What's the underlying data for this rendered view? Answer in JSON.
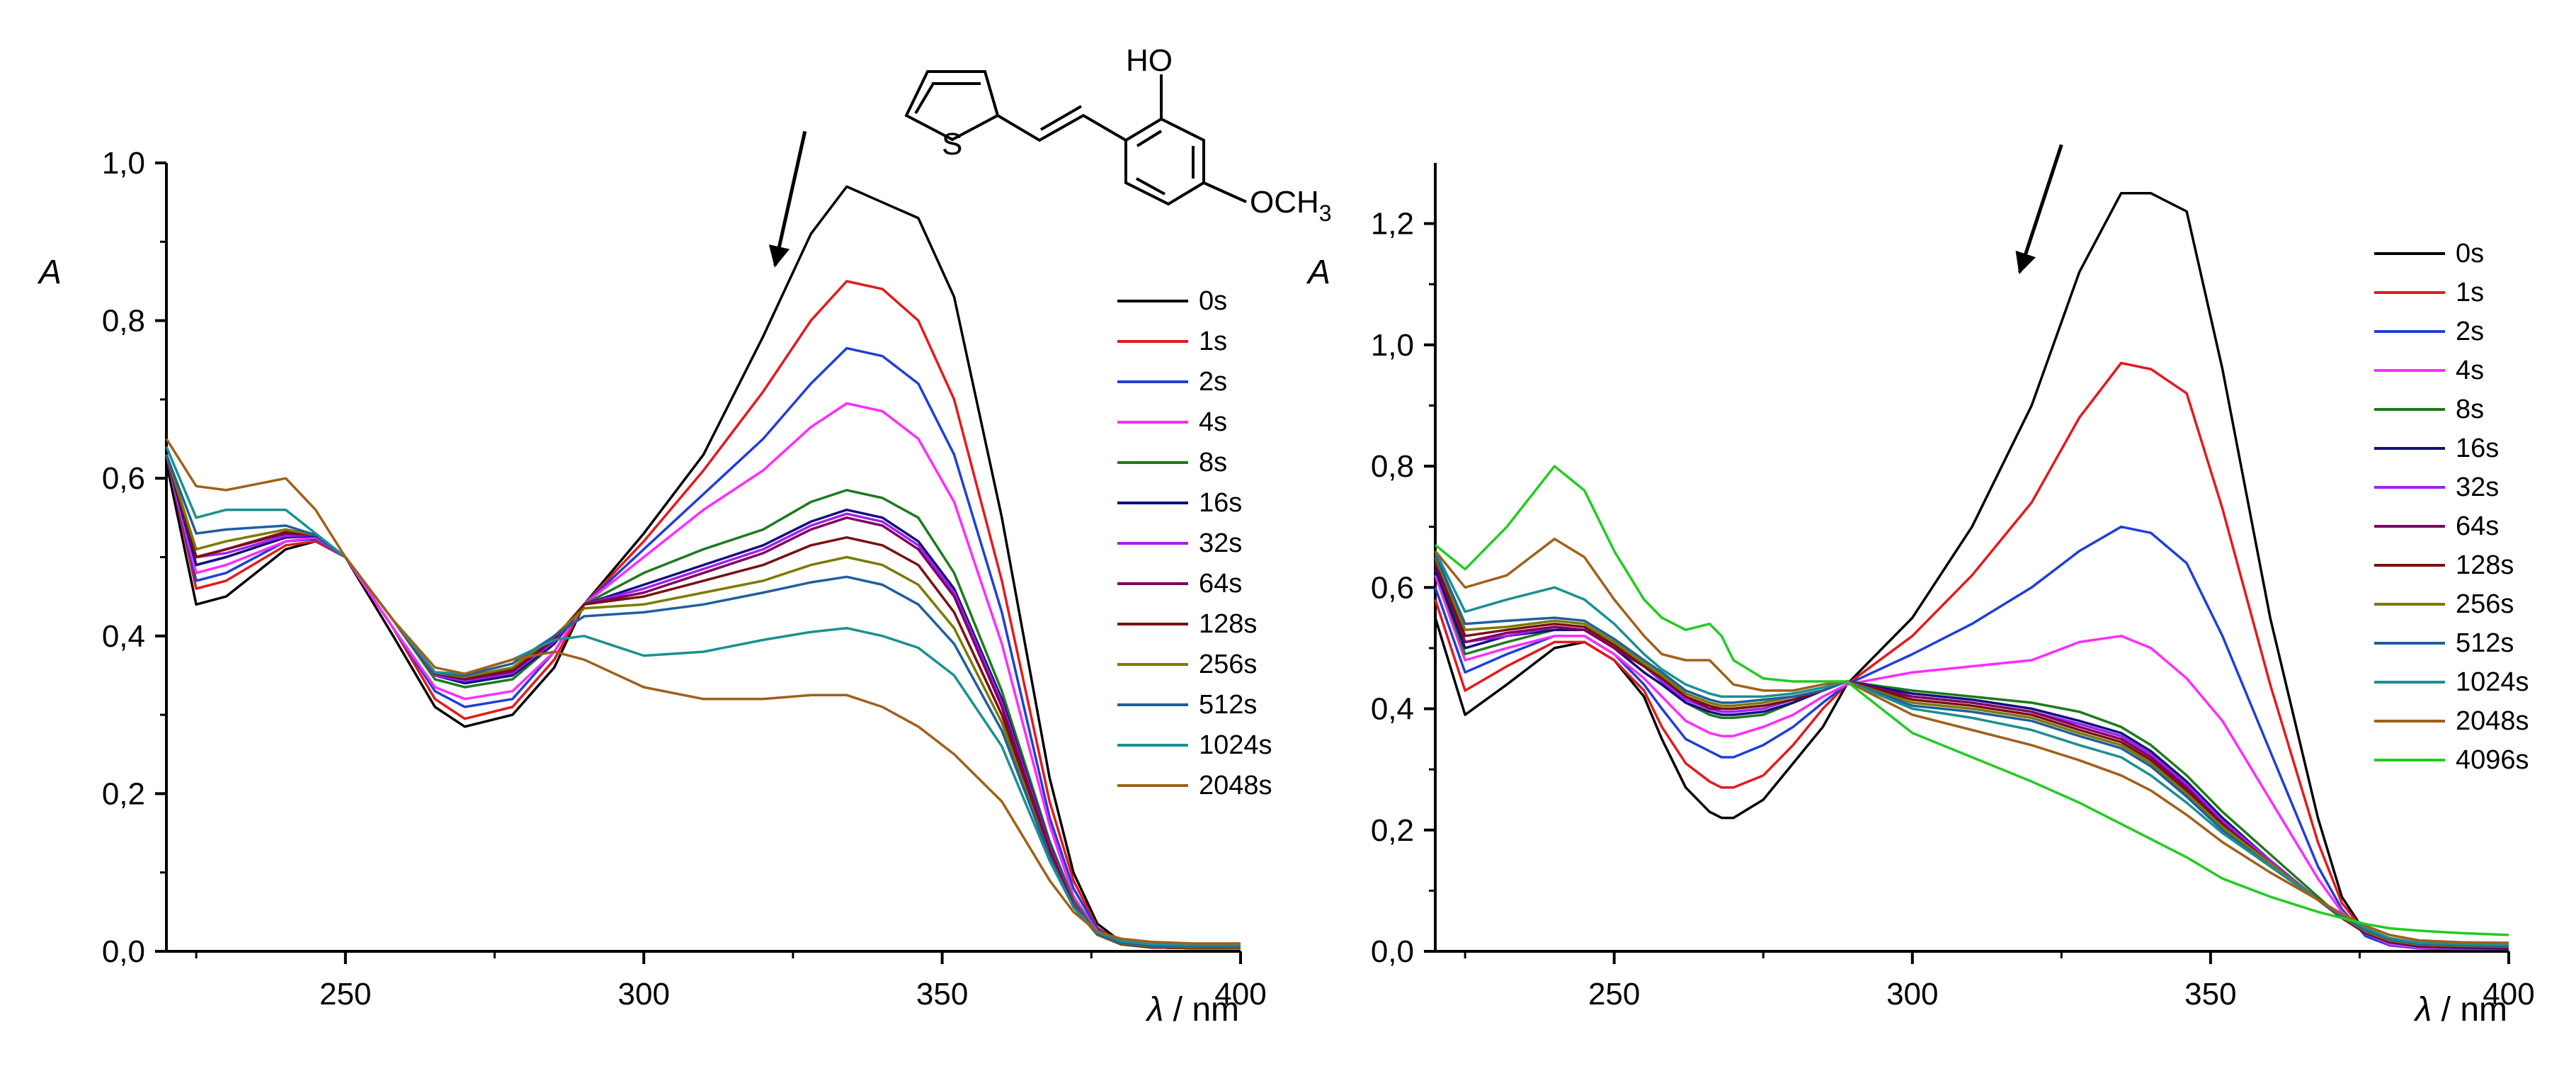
{
  "molecule": {
    "hydroxy_label": "HO",
    "sulfur_label": "S",
    "methoxy_label": "OCH",
    "methoxy_subscript": "3"
  },
  "colors": {
    "0s": "#000000",
    "1s": "#e31a1c",
    "2s": "#1f3fd8",
    "4s": "#ff2bff",
    "8s": "#1d7a1d",
    "16s": "#101080",
    "32s": "#a020f0",
    "64s": "#800060",
    "128s": "#7a1010",
    "256s": "#7a7a00",
    "512s": "#1f5f9f",
    "1024s": "#1a9090",
    "2048s": "#a0601a",
    "4096s": "#22cc22"
  },
  "chart_data": [
    {
      "type": "line",
      "title": "",
      "y_axis_title": "A",
      "x_axis_title_symbol": "λ",
      "x_axis_title_unit": " / nm",
      "xlim": [
        220,
        400
      ],
      "ylim": [
        0,
        1.0
      ],
      "x_ticks": [
        250,
        300,
        350,
        400
      ],
      "y_ticks": [
        0.0,
        0.2,
        0.4,
        0.6,
        0.8,
        1.0
      ],
      "y_tick_labels": [
        "0,0",
        "0,2",
        "0,4",
        "0,6",
        "0,8",
        "1,0"
      ],
      "legend_position": "right",
      "arrow": {
        "from": [
          327,
          1.04
        ],
        "to": [
          322,
          0.87
        ]
      },
      "x": [
        220,
        225,
        230,
        240,
        245,
        250,
        258,
        265,
        270,
        278,
        285,
        290,
        300,
        310,
        320,
        328,
        334,
        340,
        346,
        352,
        360,
        368,
        372,
        376,
        380,
        385,
        392,
        400
      ],
      "series": [
        {
          "name": "0s",
          "values": [
            0.62,
            0.44,
            0.45,
            0.51,
            0.52,
            0.5,
            0.4,
            0.31,
            0.285,
            0.3,
            0.36,
            0.44,
            0.53,
            0.63,
            0.78,
            0.91,
            0.97,
            0.95,
            0.93,
            0.83,
            0.55,
            0.22,
            0.1,
            0.035,
            0.012,
            0.005,
            0.004,
            0.004
          ]
        },
        {
          "name": "1s",
          "values": [
            0.63,
            0.46,
            0.47,
            0.515,
            0.52,
            0.5,
            0.41,
            0.32,
            0.295,
            0.31,
            0.37,
            0.44,
            0.52,
            0.61,
            0.71,
            0.8,
            0.85,
            0.84,
            0.8,
            0.7,
            0.47,
            0.19,
            0.09,
            0.03,
            0.01,
            0.005,
            0.004,
            0.004
          ]
        },
        {
          "name": "2s",
          "values": [
            0.63,
            0.47,
            0.48,
            0.52,
            0.523,
            0.5,
            0.41,
            0.33,
            0.31,
            0.32,
            0.38,
            0.44,
            0.51,
            0.58,
            0.65,
            0.72,
            0.765,
            0.755,
            0.72,
            0.63,
            0.43,
            0.17,
            0.08,
            0.028,
            0.01,
            0.005,
            0.004,
            0.004
          ]
        },
        {
          "name": "4s",
          "values": [
            0.63,
            0.48,
            0.49,
            0.52,
            0.525,
            0.5,
            0.41,
            0.335,
            0.32,
            0.33,
            0.38,
            0.44,
            0.5,
            0.56,
            0.61,
            0.665,
            0.695,
            0.685,
            0.65,
            0.57,
            0.39,
            0.16,
            0.07,
            0.025,
            0.01,
            0.005,
            0.004,
            0.004
          ]
        },
        {
          "name": "8s",
          "values": [
            0.63,
            0.49,
            0.5,
            0.525,
            0.527,
            0.5,
            0.42,
            0.345,
            0.335,
            0.345,
            0.39,
            0.44,
            0.48,
            0.51,
            0.535,
            0.57,
            0.585,
            0.575,
            0.55,
            0.48,
            0.33,
            0.14,
            0.065,
            0.023,
            0.009,
            0.005,
            0.004,
            0.004
          ]
        },
        {
          "name": "16s",
          "values": [
            0.63,
            0.49,
            0.5,
            0.525,
            0.527,
            0.5,
            0.42,
            0.35,
            0.34,
            0.35,
            0.39,
            0.44,
            0.465,
            0.49,
            0.515,
            0.545,
            0.56,
            0.55,
            0.52,
            0.46,
            0.32,
            0.135,
            0.06,
            0.022,
            0.009,
            0.005,
            0.004,
            0.004
          ]
        },
        {
          "name": "32s",
          "values": [
            0.63,
            0.5,
            0.505,
            0.527,
            0.528,
            0.5,
            0.42,
            0.35,
            0.343,
            0.353,
            0.393,
            0.44,
            0.46,
            0.485,
            0.51,
            0.54,
            0.555,
            0.545,
            0.515,
            0.455,
            0.315,
            0.133,
            0.06,
            0.022,
            0.009,
            0.005,
            0.004,
            0.004
          ]
        },
        {
          "name": "64s",
          "values": [
            0.63,
            0.5,
            0.51,
            0.53,
            0.528,
            0.5,
            0.42,
            0.352,
            0.345,
            0.355,
            0.395,
            0.44,
            0.455,
            0.48,
            0.505,
            0.535,
            0.55,
            0.54,
            0.51,
            0.45,
            0.31,
            0.13,
            0.058,
            0.021,
            0.009,
            0.005,
            0.004,
            0.004
          ]
        },
        {
          "name": "128s",
          "values": [
            0.63,
            0.5,
            0.51,
            0.532,
            0.528,
            0.5,
            0.42,
            0.352,
            0.347,
            0.357,
            0.397,
            0.44,
            0.45,
            0.47,
            0.49,
            0.515,
            0.525,
            0.515,
            0.49,
            0.43,
            0.3,
            0.125,
            0.057,
            0.021,
            0.009,
            0.005,
            0.004,
            0.004
          ]
        },
        {
          "name": "256s",
          "values": [
            0.63,
            0.51,
            0.52,
            0.535,
            0.528,
            0.5,
            0.42,
            0.353,
            0.348,
            0.36,
            0.4,
            0.435,
            0.44,
            0.455,
            0.47,
            0.49,
            0.5,
            0.49,
            0.465,
            0.41,
            0.29,
            0.12,
            0.056,
            0.021,
            0.01,
            0.006,
            0.005,
            0.005
          ]
        },
        {
          "name": "512s",
          "values": [
            0.63,
            0.53,
            0.535,
            0.54,
            0.528,
            0.5,
            0.42,
            0.353,
            0.35,
            0.365,
            0.4,
            0.425,
            0.43,
            0.44,
            0.455,
            0.468,
            0.475,
            0.465,
            0.44,
            0.39,
            0.28,
            0.12,
            0.056,
            0.022,
            0.011,
            0.007,
            0.006,
            0.006
          ]
        },
        {
          "name": "1024s",
          "values": [
            0.64,
            0.55,
            0.56,
            0.56,
            0.53,
            0.5,
            0.42,
            0.354,
            0.352,
            0.37,
            0.395,
            0.4,
            0.375,
            0.38,
            0.395,
            0.405,
            0.41,
            0.4,
            0.385,
            0.35,
            0.26,
            0.115,
            0.056,
            0.024,
            0.013,
            0.009,
            0.008,
            0.008
          ]
        },
        {
          "name": "2048s",
          "values": [
            0.65,
            0.59,
            0.585,
            0.6,
            0.56,
            0.5,
            0.42,
            0.36,
            0.352,
            0.37,
            0.38,
            0.37,
            0.335,
            0.32,
            0.32,
            0.325,
            0.325,
            0.31,
            0.285,
            0.25,
            0.19,
            0.09,
            0.05,
            0.025,
            0.016,
            0.012,
            0.01,
            0.01
          ]
        }
      ]
    },
    {
      "type": "line",
      "title": "",
      "y_axis_title": "A",
      "x_axis_title_symbol": "λ",
      "x_axis_title_unit": " / nm",
      "xlim": [
        220,
        400
      ],
      "ylim": [
        0,
        1.3
      ],
      "x_ticks": [
        250,
        300,
        350,
        400
      ],
      "y_ticks": [
        0.0,
        0.2,
        0.4,
        0.6,
        0.8,
        1.0,
        1.2
      ],
      "y_tick_labels": [
        "0,0",
        "0,2",
        "0,4",
        "0,6",
        "0,8",
        "1,0",
        "1,2"
      ],
      "legend_position": "right",
      "arrow": {
        "from": [
          325,
          1.33
        ],
        "to": [
          318,
          1.12
        ]
      },
      "x": [
        220,
        225,
        232,
        240,
        245,
        250,
        255,
        258,
        262,
        266,
        268,
        270,
        275,
        280,
        285,
        289,
        300,
        310,
        320,
        328,
        335,
        340,
        346,
        352,
        360,
        368,
        372,
        376,
        380,
        385,
        392,
        400
      ],
      "series": [
        {
          "name": "0s",
          "values": [
            0.55,
            0.39,
            0.44,
            0.5,
            0.51,
            0.48,
            0.42,
            0.35,
            0.27,
            0.23,
            0.22,
            0.22,
            0.25,
            0.31,
            0.37,
            0.44,
            0.55,
            0.7,
            0.9,
            1.12,
            1.25,
            1.25,
            1.22,
            0.96,
            0.55,
            0.22,
            0.09,
            0.03,
            0.01,
            0.005,
            0.004,
            0.004
          ]
        },
        {
          "name": "1s",
          "values": [
            0.58,
            0.43,
            0.47,
            0.51,
            0.51,
            0.48,
            0.43,
            0.37,
            0.31,
            0.28,
            0.27,
            0.27,
            0.29,
            0.34,
            0.4,
            0.44,
            0.52,
            0.62,
            0.74,
            0.88,
            0.97,
            0.96,
            0.92,
            0.73,
            0.44,
            0.18,
            0.08,
            0.03,
            0.01,
            0.005,
            0.004,
            0.004
          ]
        },
        {
          "name": "2s",
          "values": [
            0.6,
            0.46,
            0.49,
            0.52,
            0.52,
            0.49,
            0.44,
            0.4,
            0.35,
            0.33,
            0.32,
            0.32,
            0.34,
            0.37,
            0.41,
            0.44,
            0.49,
            0.54,
            0.6,
            0.66,
            0.7,
            0.69,
            0.64,
            0.52,
            0.33,
            0.14,
            0.07,
            0.025,
            0.01,
            0.005,
            0.004,
            0.004
          ]
        },
        {
          "name": "4s",
          "values": [
            0.62,
            0.48,
            0.5,
            0.52,
            0.52,
            0.49,
            0.45,
            0.42,
            0.38,
            0.36,
            0.355,
            0.355,
            0.37,
            0.39,
            0.42,
            0.44,
            0.46,
            0.47,
            0.48,
            0.51,
            0.52,
            0.5,
            0.45,
            0.38,
            0.25,
            0.12,
            0.065,
            0.03,
            0.012,
            0.006,
            0.005,
            0.005
          ]
        },
        {
          "name": "8s",
          "values": [
            0.63,
            0.49,
            0.51,
            0.53,
            0.53,
            0.5,
            0.46,
            0.44,
            0.41,
            0.39,
            0.385,
            0.385,
            0.39,
            0.41,
            0.43,
            0.445,
            0.43,
            0.42,
            0.41,
            0.395,
            0.37,
            0.34,
            0.29,
            0.23,
            0.16,
            0.09,
            0.055,
            0.03,
            0.015,
            0.008,
            0.006,
            0.005
          ]
        },
        {
          "name": "16s",
          "values": [
            0.63,
            0.5,
            0.52,
            0.53,
            0.53,
            0.5,
            0.46,
            0.44,
            0.41,
            0.395,
            0.39,
            0.39,
            0.395,
            0.41,
            0.43,
            0.445,
            0.425,
            0.415,
            0.4,
            0.38,
            0.36,
            0.33,
            0.28,
            0.22,
            0.15,
            0.085,
            0.055,
            0.03,
            0.015,
            0.008,
            0.006,
            0.005
          ]
        },
        {
          "name": "32s",
          "values": [
            0.64,
            0.51,
            0.52,
            0.535,
            0.53,
            0.5,
            0.47,
            0.445,
            0.415,
            0.4,
            0.395,
            0.395,
            0.4,
            0.415,
            0.43,
            0.445,
            0.42,
            0.41,
            0.395,
            0.375,
            0.355,
            0.325,
            0.275,
            0.215,
            0.15,
            0.085,
            0.055,
            0.03,
            0.016,
            0.009,
            0.007,
            0.006
          ]
        },
        {
          "name": "64s",
          "values": [
            0.64,
            0.51,
            0.525,
            0.535,
            0.53,
            0.5,
            0.47,
            0.45,
            0.42,
            0.4,
            0.4,
            0.4,
            0.405,
            0.415,
            0.43,
            0.445,
            0.42,
            0.41,
            0.395,
            0.37,
            0.35,
            0.32,
            0.27,
            0.21,
            0.145,
            0.085,
            0.055,
            0.03,
            0.016,
            0.009,
            0.007,
            0.006
          ]
        },
        {
          "name": "128s",
          "values": [
            0.645,
            0.52,
            0.53,
            0.54,
            0.535,
            0.505,
            0.47,
            0.45,
            0.42,
            0.405,
            0.4,
            0.4,
            0.405,
            0.415,
            0.43,
            0.445,
            0.415,
            0.405,
            0.39,
            0.365,
            0.345,
            0.315,
            0.265,
            0.21,
            0.145,
            0.085,
            0.055,
            0.032,
            0.017,
            0.01,
            0.008,
            0.007
          ]
        },
        {
          "name": "256s",
          "values": [
            0.65,
            0.53,
            0.535,
            0.545,
            0.54,
            0.51,
            0.475,
            0.455,
            0.425,
            0.41,
            0.405,
            0.405,
            0.41,
            0.42,
            0.43,
            0.445,
            0.41,
            0.4,
            0.385,
            0.36,
            0.34,
            0.31,
            0.26,
            0.205,
            0.145,
            0.085,
            0.057,
            0.033,
            0.018,
            0.011,
            0.009,
            0.008
          ]
        },
        {
          "name": "512s",
          "values": [
            0.655,
            0.54,
            0.545,
            0.55,
            0.545,
            0.515,
            0.48,
            0.46,
            0.43,
            0.415,
            0.41,
            0.41,
            0.415,
            0.42,
            0.43,
            0.445,
            0.405,
            0.395,
            0.38,
            0.355,
            0.335,
            0.305,
            0.255,
            0.2,
            0.14,
            0.085,
            0.058,
            0.035,
            0.02,
            0.012,
            0.01,
            0.009
          ]
        },
        {
          "name": "1024s",
          "values": [
            0.66,
            0.56,
            0.58,
            0.6,
            0.58,
            0.54,
            0.49,
            0.465,
            0.44,
            0.425,
            0.42,
            0.42,
            0.42,
            0.425,
            0.435,
            0.445,
            0.4,
            0.385,
            0.365,
            0.34,
            0.32,
            0.29,
            0.245,
            0.195,
            0.14,
            0.085,
            0.06,
            0.038,
            0.022,
            0.014,
            0.012,
            0.011
          ]
        },
        {
          "name": "2048s",
          "values": [
            0.66,
            0.6,
            0.62,
            0.68,
            0.65,
            0.58,
            0.52,
            0.49,
            0.48,
            0.48,
            0.46,
            0.44,
            0.43,
            0.43,
            0.44,
            0.445,
            0.39,
            0.365,
            0.34,
            0.315,
            0.29,
            0.265,
            0.225,
            0.18,
            0.13,
            0.085,
            0.062,
            0.042,
            0.027,
            0.018,
            0.015,
            0.014
          ]
        },
        {
          "name": "4096s",
          "values": [
            0.67,
            0.63,
            0.7,
            0.8,
            0.76,
            0.66,
            0.58,
            0.55,
            0.53,
            0.54,
            0.52,
            0.48,
            0.45,
            0.445,
            0.445,
            0.445,
            0.36,
            0.32,
            0.28,
            0.245,
            0.21,
            0.185,
            0.155,
            0.12,
            0.09,
            0.065,
            0.055,
            0.045,
            0.038,
            0.034,
            0.03,
            0.027
          ]
        }
      ]
    }
  ]
}
